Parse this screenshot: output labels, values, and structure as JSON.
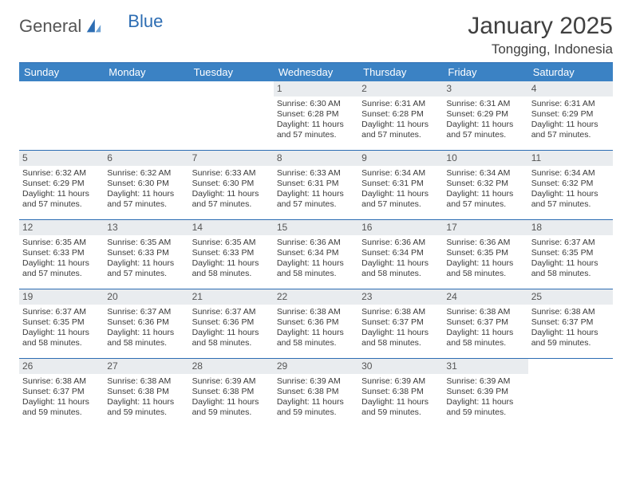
{
  "brand": {
    "part1": "General",
    "part2": "Blue",
    "brand_color": "#2d6db3"
  },
  "title": {
    "month": "January 2025",
    "location": "Tongging, Indonesia"
  },
  "styling": {
    "header_bg": "#3b82c4",
    "header_text": "#ffffff",
    "daynum_bg": "#e9ecef",
    "rule_color": "#2d6db3",
    "body_fontsize": 10.5,
    "header_fontsize": 13,
    "title_fontsize": 30,
    "subtitle_fontsize": 17
  },
  "weekdays": [
    "Sunday",
    "Monday",
    "Tuesday",
    "Wednesday",
    "Thursday",
    "Friday",
    "Saturday"
  ],
  "weeks": [
    [
      null,
      null,
      null,
      {
        "n": "1",
        "sunrise": "Sunrise: 6:30 AM",
        "sunset": "Sunset: 6:28 PM",
        "d1": "Daylight: 11 hours",
        "d2": "and 57 minutes."
      },
      {
        "n": "2",
        "sunrise": "Sunrise: 6:31 AM",
        "sunset": "Sunset: 6:28 PM",
        "d1": "Daylight: 11 hours",
        "d2": "and 57 minutes."
      },
      {
        "n": "3",
        "sunrise": "Sunrise: 6:31 AM",
        "sunset": "Sunset: 6:29 PM",
        "d1": "Daylight: 11 hours",
        "d2": "and 57 minutes."
      },
      {
        "n": "4",
        "sunrise": "Sunrise: 6:31 AM",
        "sunset": "Sunset: 6:29 PM",
        "d1": "Daylight: 11 hours",
        "d2": "and 57 minutes."
      }
    ],
    [
      {
        "n": "5",
        "sunrise": "Sunrise: 6:32 AM",
        "sunset": "Sunset: 6:29 PM",
        "d1": "Daylight: 11 hours",
        "d2": "and 57 minutes."
      },
      {
        "n": "6",
        "sunrise": "Sunrise: 6:32 AM",
        "sunset": "Sunset: 6:30 PM",
        "d1": "Daylight: 11 hours",
        "d2": "and 57 minutes."
      },
      {
        "n": "7",
        "sunrise": "Sunrise: 6:33 AM",
        "sunset": "Sunset: 6:30 PM",
        "d1": "Daylight: 11 hours",
        "d2": "and 57 minutes."
      },
      {
        "n": "8",
        "sunrise": "Sunrise: 6:33 AM",
        "sunset": "Sunset: 6:31 PM",
        "d1": "Daylight: 11 hours",
        "d2": "and 57 minutes."
      },
      {
        "n": "9",
        "sunrise": "Sunrise: 6:34 AM",
        "sunset": "Sunset: 6:31 PM",
        "d1": "Daylight: 11 hours",
        "d2": "and 57 minutes."
      },
      {
        "n": "10",
        "sunrise": "Sunrise: 6:34 AM",
        "sunset": "Sunset: 6:32 PM",
        "d1": "Daylight: 11 hours",
        "d2": "and 57 minutes."
      },
      {
        "n": "11",
        "sunrise": "Sunrise: 6:34 AM",
        "sunset": "Sunset: 6:32 PM",
        "d1": "Daylight: 11 hours",
        "d2": "and 57 minutes."
      }
    ],
    [
      {
        "n": "12",
        "sunrise": "Sunrise: 6:35 AM",
        "sunset": "Sunset: 6:33 PM",
        "d1": "Daylight: 11 hours",
        "d2": "and 57 minutes."
      },
      {
        "n": "13",
        "sunrise": "Sunrise: 6:35 AM",
        "sunset": "Sunset: 6:33 PM",
        "d1": "Daylight: 11 hours",
        "d2": "and 57 minutes."
      },
      {
        "n": "14",
        "sunrise": "Sunrise: 6:35 AM",
        "sunset": "Sunset: 6:33 PM",
        "d1": "Daylight: 11 hours",
        "d2": "and 58 minutes."
      },
      {
        "n": "15",
        "sunrise": "Sunrise: 6:36 AM",
        "sunset": "Sunset: 6:34 PM",
        "d1": "Daylight: 11 hours",
        "d2": "and 58 minutes."
      },
      {
        "n": "16",
        "sunrise": "Sunrise: 6:36 AM",
        "sunset": "Sunset: 6:34 PM",
        "d1": "Daylight: 11 hours",
        "d2": "and 58 minutes."
      },
      {
        "n": "17",
        "sunrise": "Sunrise: 6:36 AM",
        "sunset": "Sunset: 6:35 PM",
        "d1": "Daylight: 11 hours",
        "d2": "and 58 minutes."
      },
      {
        "n": "18",
        "sunrise": "Sunrise: 6:37 AM",
        "sunset": "Sunset: 6:35 PM",
        "d1": "Daylight: 11 hours",
        "d2": "and 58 minutes."
      }
    ],
    [
      {
        "n": "19",
        "sunrise": "Sunrise: 6:37 AM",
        "sunset": "Sunset: 6:35 PM",
        "d1": "Daylight: 11 hours",
        "d2": "and 58 minutes."
      },
      {
        "n": "20",
        "sunrise": "Sunrise: 6:37 AM",
        "sunset": "Sunset: 6:36 PM",
        "d1": "Daylight: 11 hours",
        "d2": "and 58 minutes."
      },
      {
        "n": "21",
        "sunrise": "Sunrise: 6:37 AM",
        "sunset": "Sunset: 6:36 PM",
        "d1": "Daylight: 11 hours",
        "d2": "and 58 minutes."
      },
      {
        "n": "22",
        "sunrise": "Sunrise: 6:38 AM",
        "sunset": "Sunset: 6:36 PM",
        "d1": "Daylight: 11 hours",
        "d2": "and 58 minutes."
      },
      {
        "n": "23",
        "sunrise": "Sunrise: 6:38 AM",
        "sunset": "Sunset: 6:37 PM",
        "d1": "Daylight: 11 hours",
        "d2": "and 58 minutes."
      },
      {
        "n": "24",
        "sunrise": "Sunrise: 6:38 AM",
        "sunset": "Sunset: 6:37 PM",
        "d1": "Daylight: 11 hours",
        "d2": "and 58 minutes."
      },
      {
        "n": "25",
        "sunrise": "Sunrise: 6:38 AM",
        "sunset": "Sunset: 6:37 PM",
        "d1": "Daylight: 11 hours",
        "d2": "and 59 minutes."
      }
    ],
    [
      {
        "n": "26",
        "sunrise": "Sunrise: 6:38 AM",
        "sunset": "Sunset: 6:37 PM",
        "d1": "Daylight: 11 hours",
        "d2": "and 59 minutes."
      },
      {
        "n": "27",
        "sunrise": "Sunrise: 6:38 AM",
        "sunset": "Sunset: 6:38 PM",
        "d1": "Daylight: 11 hours",
        "d2": "and 59 minutes."
      },
      {
        "n": "28",
        "sunrise": "Sunrise: 6:39 AM",
        "sunset": "Sunset: 6:38 PM",
        "d1": "Daylight: 11 hours",
        "d2": "and 59 minutes."
      },
      {
        "n": "29",
        "sunrise": "Sunrise: 6:39 AM",
        "sunset": "Sunset: 6:38 PM",
        "d1": "Daylight: 11 hours",
        "d2": "and 59 minutes."
      },
      {
        "n": "30",
        "sunrise": "Sunrise: 6:39 AM",
        "sunset": "Sunset: 6:38 PM",
        "d1": "Daylight: 11 hours",
        "d2": "and 59 minutes."
      },
      {
        "n": "31",
        "sunrise": "Sunrise: 6:39 AM",
        "sunset": "Sunset: 6:39 PM",
        "d1": "Daylight: 11 hours",
        "d2": "and 59 minutes."
      },
      null
    ]
  ]
}
